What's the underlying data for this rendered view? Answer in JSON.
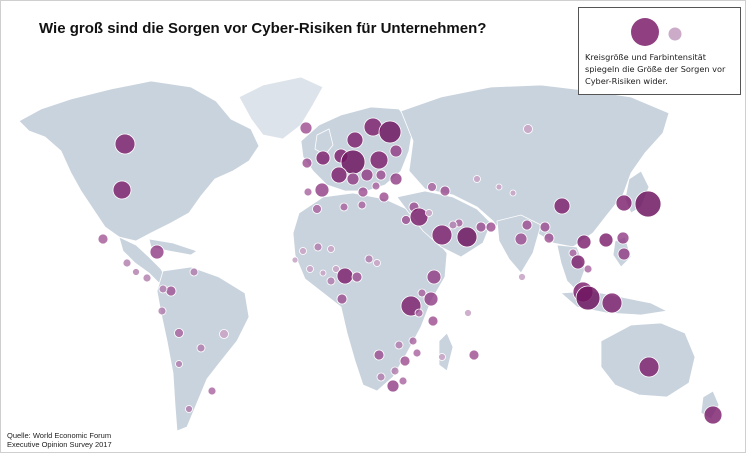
{
  "title": "Wie groß sind die Sorgen vor Cyber-Risiken für Unternehmen?",
  "legend": {
    "text": "Kreisgröße und Farbintensität spiegeln die Größe der Sorgen vor Cyber-Risiken wider.",
    "symbols": [
      "large dark circle",
      "small light circle"
    ]
  },
  "source": {
    "line1": "Quelle: World Economic Forum",
    "line2": "Executive Opinion Survey 2017"
  },
  "colors": {
    "land": "#c9d3dd",
    "land_light": "#dde3ea",
    "ocean": "#ffffff",
    "bubble_dark": "#7d1f6b",
    "bubble_light": "#c9a6c6"
  },
  "map_type": "proportional-symbol world map"
}
